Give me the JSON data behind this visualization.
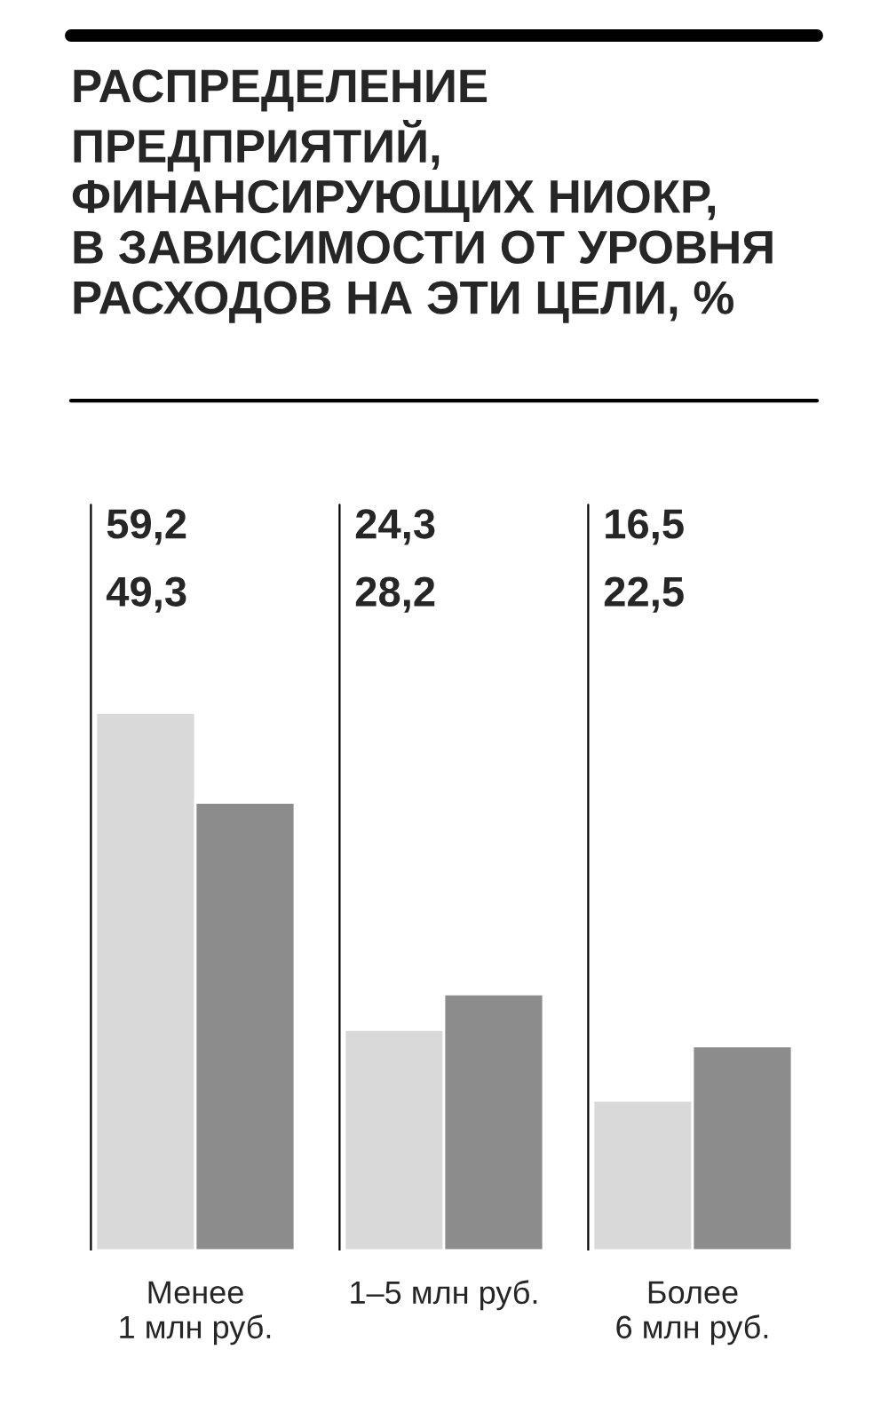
{
  "chart_data": {
    "type": "bar",
    "title": "РАСПРЕДЕЛЕНИЕ\nПРЕДПРИЯТИЙ,\nФИНАНСИРУЮЩИХ НИОКР,\nВ ЗАВИСИМОСТИ ОТ УРОВНЯ\nРАСХОДОВ НА ЭТИ ЦЕЛИ, %",
    "categories": [
      "Менее\n1 млн руб.",
      "1–5 млн руб.",
      "Более\n6 млн руб."
    ],
    "series": [
      {
        "color": "#d9d9d9",
        "values": [
          59.2,
          24.3,
          16.5
        ],
        "value_labels": [
          "59,2",
          "24,3",
          "16,5"
        ]
      },
      {
        "color": "#8c8c8c",
        "values": [
          49.3,
          28.2,
          22.5
        ],
        "value_labels": [
          "49,3",
          "28,2",
          "22,5"
        ]
      }
    ],
    "data_labels": false
  }
}
